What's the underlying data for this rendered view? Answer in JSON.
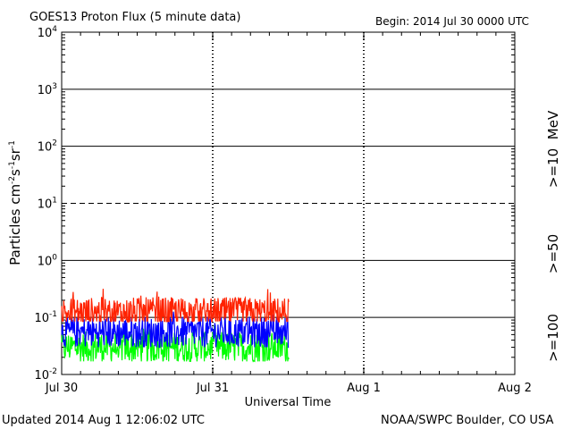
{
  "chart_data": {
    "type": "line",
    "title": "GOES13 Proton Flux (5 minute data)",
    "begin_label": "Begin: 2014 Jul 30 0000 UTC",
    "xlabel": "Universal Time",
    "ylabel": {
      "base": "Particles cm",
      "exp1": "-2",
      "mid1": "s",
      "exp2": "-1",
      "mid2": "sr",
      "exp3": "-1"
    },
    "y_scale": "log",
    "ylim": [
      0.01,
      10000
    ],
    "y_ticks": [
      {
        "value": 10000,
        "base": "10",
        "exp": "4"
      },
      {
        "value": 1000,
        "base": "10",
        "exp": "3"
      },
      {
        "value": 100,
        "base": "10",
        "exp": "2"
      },
      {
        "value": 10,
        "base": "10",
        "exp": "1"
      },
      {
        "value": 1,
        "base": "10",
        "exp": "0"
      },
      {
        "value": 0.1,
        "base": "10",
        "exp": "-1"
      },
      {
        "value": 0.01,
        "base": "10",
        "exp": "-2"
      }
    ],
    "x_range_hours": [
      0,
      72
    ],
    "x_ticks": [
      {
        "hour": 0,
        "label": "Jul 30"
      },
      {
        "hour": 24,
        "label": "Jul 31"
      },
      {
        "hour": 48,
        "label": "Aug 1"
      },
      {
        "hour": 72,
        "label": "Aug 2"
      }
    ],
    "threshold_lines": [
      {
        "value": 10,
        "style": "dashed"
      },
      {
        "value": 1000,
        "style": "solid"
      },
      {
        "value": 100,
        "style": "solid"
      },
      {
        "value": 1,
        "style": "solid"
      },
      {
        "value": 0.1,
        "style": "solid"
      }
    ],
    "data_end_hour": 36.1,
    "series": [
      {
        "name": ">=10",
        "color": "#ff2200",
        "typical": 0.12,
        "min": 0.085,
        "max": 0.36
      },
      {
        "name": ">=50",
        "color": "#0000ff",
        "typical": 0.055,
        "min": 0.03,
        "max": 0.13
      },
      {
        "name": ">=100",
        "color": "#00ff00",
        "typical": 0.03,
        "min": 0.017,
        "max": 0.075
      }
    ],
    "legend_unit": "MeV",
    "grid": true
  },
  "footer": {
    "updated": "Updated 2014 Aug  1 12:06:02 UTC",
    "source": "NOAA/SWPC Boulder, CO USA"
  }
}
